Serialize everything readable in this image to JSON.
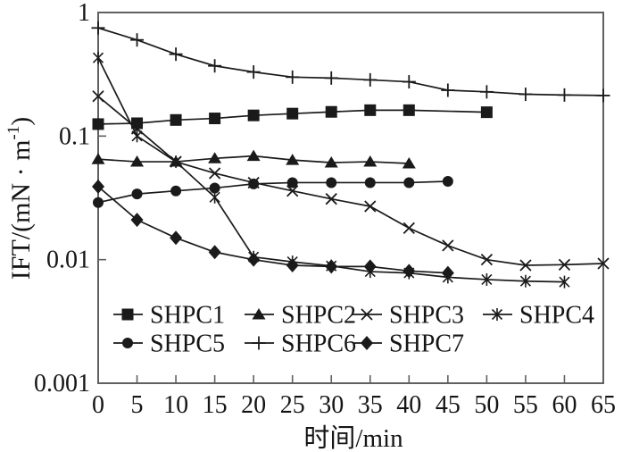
{
  "figure": {
    "background": "#ffffff",
    "frame_color": "#606060",
    "line_color": "#1a1a1a",
    "text_color": "#151515"
  },
  "chart_data": {
    "type": "line",
    "title": "",
    "xlabel": "时间/min",
    "ylabel": "IFT/(mN·m⁻¹)",
    "ylabel_parts": {
      "main": "IFT/(mN · m",
      "sup": "-1",
      "close": ")"
    },
    "x_scale": "linear",
    "y_scale": "log",
    "xlim": [
      0,
      65
    ],
    "ylim": [
      0.001,
      1
    ],
    "x_ticks": [
      0,
      5,
      10,
      15,
      20,
      25,
      30,
      35,
      40,
      45,
      50,
      55,
      60,
      65
    ],
    "y_ticks": [
      1,
      0.1,
      0.01,
      0.001
    ],
    "y_tick_labels": [
      "1",
      "0.1",
      "0.01",
      "0.001"
    ],
    "grid": false,
    "legend_position": "inside bottom-left, two rows",
    "series": [
      {
        "name": "SHPC1",
        "marker": "square",
        "x": [
          0,
          5,
          10,
          15,
          20,
          25,
          30,
          35,
          40,
          50
        ],
        "y": [
          0.125,
          0.127,
          0.135,
          0.139,
          0.147,
          0.152,
          0.157,
          0.162,
          0.162,
          0.156
        ]
      },
      {
        "name": "SHPC2",
        "marker": "triangle",
        "x": [
          0,
          5,
          10,
          15,
          20,
          25,
          30,
          35,
          40
        ],
        "y": [
          0.065,
          0.062,
          0.062,
          0.066,
          0.069,
          0.064,
          0.061,
          0.062,
          0.06
        ]
      },
      {
        "name": "SHPC3",
        "marker": "x",
        "x": [
          0,
          5,
          10,
          15,
          20,
          25,
          30,
          35,
          40,
          45,
          50,
          55,
          60,
          65
        ],
        "y": [
          0.21,
          0.115,
          0.062,
          0.05,
          0.042,
          0.036,
          0.031,
          0.027,
          0.018,
          0.013,
          0.01,
          0.009,
          0.0091,
          0.0093
        ]
      },
      {
        "name": "SHPC4",
        "marker": "asterisk",
        "x": [
          0,
          5,
          10,
          15,
          20,
          25,
          30,
          35,
          40,
          45,
          50,
          55,
          60
        ],
        "y": [
          0.43,
          0.1,
          0.062,
          0.032,
          0.0105,
          0.0096,
          0.0089,
          0.008,
          0.0078,
          0.0072,
          0.0069,
          0.0067,
          0.0066
        ]
      },
      {
        "name": "SHPC5",
        "marker": "circle",
        "x": [
          0,
          5,
          10,
          15,
          20,
          25,
          30,
          35,
          40,
          45
        ],
        "y": [
          0.029,
          0.034,
          0.036,
          0.038,
          0.041,
          0.042,
          0.042,
          0.042,
          0.042,
          0.043
        ]
      },
      {
        "name": "SHPC6",
        "marker": "plus",
        "x": [
          0,
          5,
          10,
          15,
          20,
          25,
          30,
          35,
          40,
          45,
          50,
          55,
          60,
          65
        ],
        "y": [
          0.75,
          0.6,
          0.46,
          0.37,
          0.33,
          0.3,
          0.295,
          0.285,
          0.275,
          0.235,
          0.228,
          0.218,
          0.215,
          0.213
        ]
      },
      {
        "name": "SHPC7",
        "marker": "diamond",
        "x": [
          0,
          5,
          10,
          15,
          20,
          25,
          30,
          35,
          40,
          45
        ],
        "y": [
          0.039,
          0.021,
          0.015,
          0.0115,
          0.01,
          0.009,
          0.0088,
          0.0088,
          0.0081,
          0.0078
        ]
      }
    ],
    "legend_rows": [
      [
        "SHPC1",
        "SHPC2",
        "SHPC3",
        "SHPC4"
      ],
      [
        "SHPC5",
        "SHPC6",
        "SHPC7"
      ]
    ]
  }
}
